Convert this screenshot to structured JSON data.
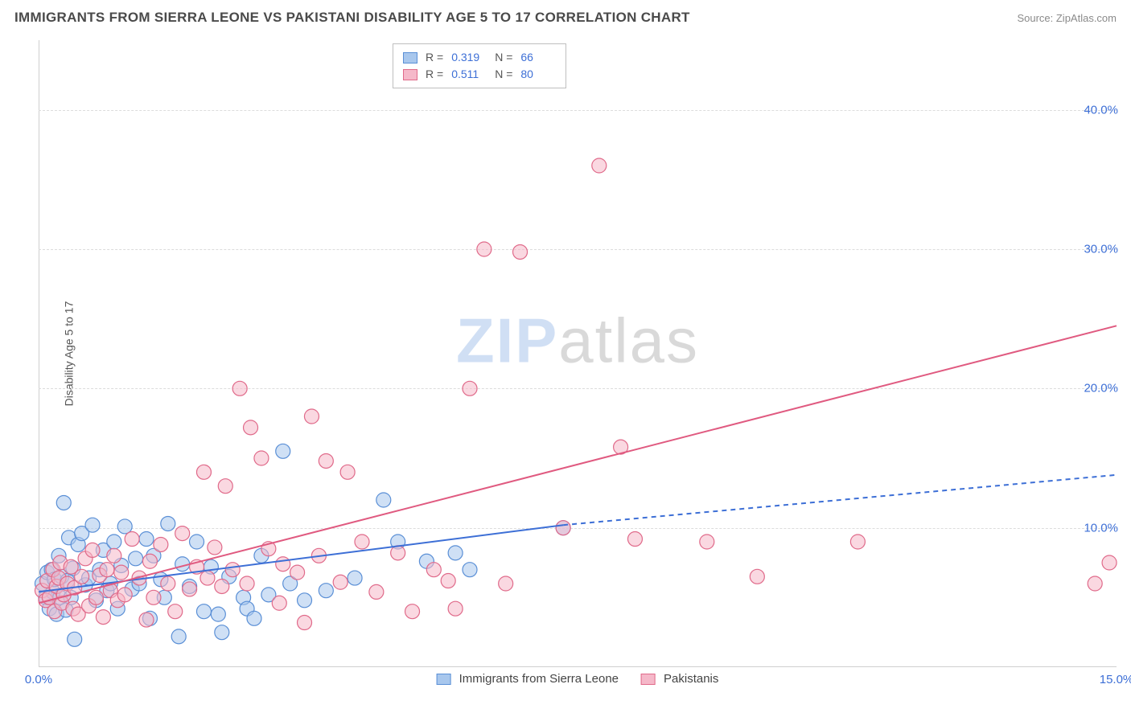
{
  "header": {
    "title": "IMMIGRANTS FROM SIERRA LEONE VS PAKISTANI DISABILITY AGE 5 TO 17 CORRELATION CHART",
    "source_prefix": "Source: ",
    "source_name": "ZipAtlas.com"
  },
  "watermark": {
    "left": "ZIP",
    "right": "atlas"
  },
  "chart": {
    "type": "scatter",
    "xlim": [
      0,
      15
    ],
    "ylim": [
      0,
      45
    ],
    "x_ticks": [
      0,
      15
    ],
    "x_tick_labels": [
      "0.0%",
      "15.0%"
    ],
    "y_ticks": [
      10,
      20,
      30,
      40
    ],
    "y_tick_labels": [
      "10.0%",
      "20.0%",
      "30.0%",
      "40.0%"
    ],
    "y_axis_label": "Disability Age 5 to 17",
    "grid_color": "#dcdcdc",
    "axis_color": "#cfcfcf",
    "background_color": "#ffffff",
    "series": [
      {
        "id": "sierra_leone",
        "label": "Immigrants from Sierra Leone",
        "fill": "#a8c7ed",
        "stroke": "#5a8fd6",
        "fill_opacity": 0.55,
        "marker_radius": 9,
        "R": "0.319",
        "N": "66",
        "trend": {
          "solid": [
            [
              0.0,
              5.4
            ],
            [
              7.3,
              10.2
            ]
          ],
          "dashed": [
            [
              7.3,
              10.2
            ],
            [
              15.0,
              13.8
            ]
          ],
          "color": "#3d6fd6",
          "width": 2
        },
        "points": [
          [
            0.05,
            6.0
          ],
          [
            0.1,
            5.0
          ],
          [
            0.12,
            6.8
          ],
          [
            0.15,
            4.2
          ],
          [
            0.18,
            7.0
          ],
          [
            0.2,
            5.4
          ],
          [
            0.22,
            6.3
          ],
          [
            0.25,
            3.8
          ],
          [
            0.28,
            8.0
          ],
          [
            0.3,
            5.0
          ],
          [
            0.32,
            6.5
          ],
          [
            0.35,
            11.8
          ],
          [
            0.38,
            4.1
          ],
          [
            0.4,
            6.2
          ],
          [
            0.42,
            9.3
          ],
          [
            0.45,
            5.0
          ],
          [
            0.48,
            7.1
          ],
          [
            0.5,
            2.0
          ],
          [
            0.55,
            8.8
          ],
          [
            0.6,
            9.6
          ],
          [
            0.65,
            5.9
          ],
          [
            0.7,
            6.4
          ],
          [
            0.75,
            10.2
          ],
          [
            0.8,
            4.8
          ],
          [
            0.85,
            7.0
          ],
          [
            0.9,
            8.4
          ],
          [
            0.95,
            5.5
          ],
          [
            1.0,
            6.0
          ],
          [
            1.05,
            9.0
          ],
          [
            1.1,
            4.2
          ],
          [
            1.15,
            7.3
          ],
          [
            1.2,
            10.1
          ],
          [
            1.3,
            5.6
          ],
          [
            1.35,
            7.8
          ],
          [
            1.4,
            6.0
          ],
          [
            1.5,
            9.2
          ],
          [
            1.55,
            3.5
          ],
          [
            1.6,
            8.0
          ],
          [
            1.7,
            6.3
          ],
          [
            1.75,
            5.0
          ],
          [
            1.8,
            10.3
          ],
          [
            1.95,
            2.2
          ],
          [
            2.0,
            7.4
          ],
          [
            2.1,
            5.8
          ],
          [
            2.2,
            9.0
          ],
          [
            2.3,
            4.0
          ],
          [
            2.4,
            7.2
          ],
          [
            2.5,
            3.8
          ],
          [
            2.55,
            2.5
          ],
          [
            2.65,
            6.5
          ],
          [
            2.85,
            5.0
          ],
          [
            2.9,
            4.2
          ],
          [
            3.0,
            3.5
          ],
          [
            3.1,
            8.0
          ],
          [
            3.2,
            5.2
          ],
          [
            3.4,
            15.5
          ],
          [
            3.5,
            6.0
          ],
          [
            3.7,
            4.8
          ],
          [
            4.0,
            5.5
          ],
          [
            4.4,
            6.4
          ],
          [
            4.8,
            12.0
          ],
          [
            5.0,
            9.0
          ],
          [
            5.4,
            7.6
          ],
          [
            5.8,
            8.2
          ],
          [
            6.0,
            7.0
          ],
          [
            7.3,
            10.0
          ]
        ]
      },
      {
        "id": "pakistanis",
        "label": "Pakistanis",
        "fill": "#f5b8c9",
        "stroke": "#e06a8a",
        "fill_opacity": 0.55,
        "marker_radius": 9,
        "R": "0.511",
        "N": "80",
        "trend": {
          "solid": [
            [
              0.0,
              4.6
            ],
            [
              15.0,
              24.5
            ]
          ],
          "dashed": null,
          "color": "#e05a80",
          "width": 2
        },
        "points": [
          [
            0.05,
            5.5
          ],
          [
            0.1,
            4.8
          ],
          [
            0.12,
            6.2
          ],
          [
            0.15,
            5.0
          ],
          [
            0.2,
            7.0
          ],
          [
            0.22,
            4.0
          ],
          [
            0.25,
            5.8
          ],
          [
            0.28,
            6.4
          ],
          [
            0.3,
            7.5
          ],
          [
            0.32,
            4.6
          ],
          [
            0.35,
            5.2
          ],
          [
            0.4,
            6.0
          ],
          [
            0.45,
            7.2
          ],
          [
            0.48,
            4.2
          ],
          [
            0.5,
            5.7
          ],
          [
            0.55,
            3.8
          ],
          [
            0.6,
            6.5
          ],
          [
            0.65,
            7.8
          ],
          [
            0.7,
            4.4
          ],
          [
            0.75,
            8.4
          ],
          [
            0.8,
            5.0
          ],
          [
            0.85,
            6.6
          ],
          [
            0.9,
            3.6
          ],
          [
            0.95,
            7.0
          ],
          [
            1.0,
            5.5
          ],
          [
            1.05,
            8.0
          ],
          [
            1.1,
            4.8
          ],
          [
            1.15,
            6.8
          ],
          [
            1.2,
            5.2
          ],
          [
            1.3,
            9.2
          ],
          [
            1.4,
            6.4
          ],
          [
            1.5,
            3.4
          ],
          [
            1.55,
            7.6
          ],
          [
            1.6,
            5.0
          ],
          [
            1.7,
            8.8
          ],
          [
            1.8,
            6.0
          ],
          [
            1.9,
            4.0
          ],
          [
            2.0,
            9.6
          ],
          [
            2.1,
            5.6
          ],
          [
            2.2,
            7.2
          ],
          [
            2.3,
            14.0
          ],
          [
            2.35,
            6.4
          ],
          [
            2.45,
            8.6
          ],
          [
            2.55,
            5.8
          ],
          [
            2.6,
            13.0
          ],
          [
            2.7,
            7.0
          ],
          [
            2.8,
            20.0
          ],
          [
            2.9,
            6.0
          ],
          [
            2.95,
            17.2
          ],
          [
            3.1,
            15.0
          ],
          [
            3.2,
            8.5
          ],
          [
            3.35,
            4.6
          ],
          [
            3.4,
            7.4
          ],
          [
            3.6,
            6.8
          ],
          [
            3.7,
            3.2
          ],
          [
            3.8,
            18.0
          ],
          [
            3.9,
            8.0
          ],
          [
            4.0,
            14.8
          ],
          [
            4.2,
            6.1
          ],
          [
            4.3,
            14.0
          ],
          [
            4.5,
            9.0
          ],
          [
            4.7,
            5.4
          ],
          [
            5.0,
            8.2
          ],
          [
            5.2,
            4.0
          ],
          [
            5.5,
            7.0
          ],
          [
            5.7,
            6.2
          ],
          [
            5.8,
            4.2
          ],
          [
            6.0,
            20.0
          ],
          [
            6.2,
            30.0
          ],
          [
            6.5,
            6.0
          ],
          [
            6.7,
            29.8
          ],
          [
            7.3,
            10.0
          ],
          [
            7.8,
            36.0
          ],
          [
            8.1,
            15.8
          ],
          [
            8.3,
            9.2
          ],
          [
            9.3,
            9.0
          ],
          [
            10.0,
            6.5
          ],
          [
            11.4,
            9.0
          ],
          [
            14.7,
            6.0
          ],
          [
            14.9,
            7.5
          ]
        ]
      }
    ],
    "legend_top": {
      "R_label": "R =",
      "N_label": "N ="
    },
    "legend_bottom_labels": [
      "Immigrants from Sierra Leone",
      "Pakistanis"
    ]
  }
}
